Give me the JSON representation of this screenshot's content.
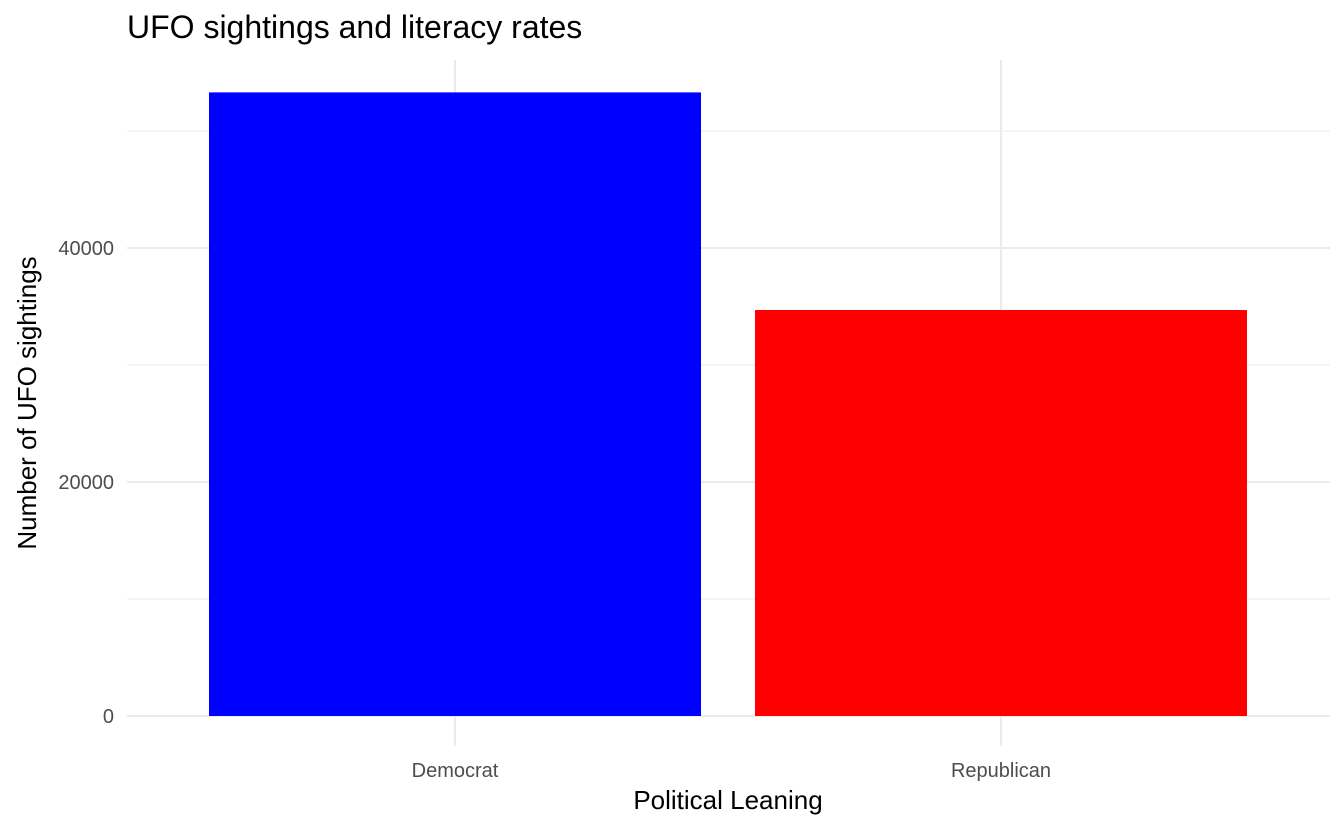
{
  "chart_data": {
    "type": "bar",
    "title": "UFO sightings and literacy rates",
    "xlabel": "Political Leaning",
    "ylabel": "Number of UFO sightings",
    "categories": [
      "Democrat",
      "Republican"
    ],
    "values": [
      53300,
      34700
    ],
    "colors": [
      "#0000ff",
      "#ff0000"
    ],
    "ylim": [
      0,
      56000
    ],
    "yticks": [
      0,
      20000,
      40000
    ],
    "yticks_minor": [
      10000,
      30000,
      50000
    ],
    "grid": true,
    "legend": "none"
  }
}
